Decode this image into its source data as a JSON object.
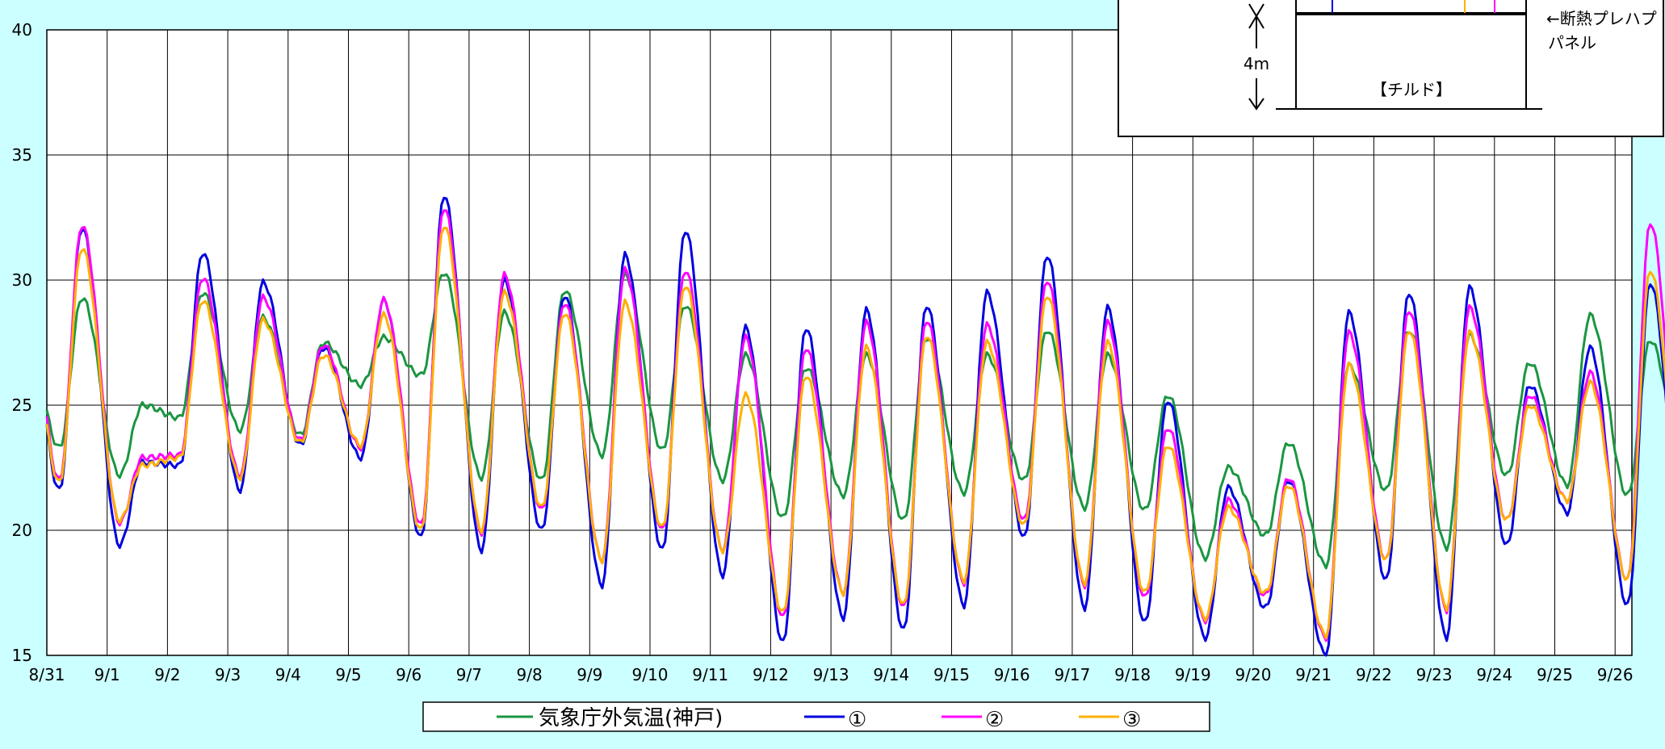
{
  "chart_data": {
    "type": "line",
    "xlabel": "",
    "ylabel": "",
    "ylim": [
      15,
      40
    ],
    "yticks": [
      15,
      20,
      25,
      30,
      35,
      40
    ],
    "grid": true,
    "legend_position": "bottom",
    "categories": [
      "8/31",
      "9/1",
      "9/2",
      "9/3",
      "9/4",
      "9/5",
      "9/6",
      "9/7",
      "9/8",
      "9/9",
      "9/10",
      "9/11",
      "9/12",
      "9/13",
      "9/14",
      "9/15",
      "9/16",
      "9/17",
      "9/18",
      "9/19",
      "9/20",
      "9/21",
      "9/22",
      "9/23",
      "9/24",
      "9/25",
      "9/26"
    ],
    "series_style": {
      "samples_per_day": 24,
      "start_day_offset": 0
    },
    "series": [
      {
        "name": "気象庁外気温(神戸)",
        "color": "#1a9641",
        "daily": [
          {
            "min": 23.3,
            "max": 29.3
          },
          {
            "min": 22.2,
            "max": 25.0
          },
          {
            "min": 24.5,
            "max": 29.5
          },
          {
            "min": 24.0,
            "max": 28.5
          },
          {
            "min": 23.8,
            "max": 27.5
          },
          {
            "min": 25.8,
            "max": 27.7
          },
          {
            "min": 26.2,
            "max": 30.3
          },
          {
            "min": 22.1,
            "max": 28.7
          },
          {
            "min": 22.0,
            "max": 29.6
          },
          {
            "min": 23.0,
            "max": 30.2
          },
          {
            "min": 23.2,
            "max": 29.0
          },
          {
            "min": 22.0,
            "max": 27.0
          },
          {
            "min": 20.5,
            "max": 26.5
          },
          {
            "min": 21.4,
            "max": 27.0
          },
          {
            "min": 20.4,
            "max": 27.7
          },
          {
            "min": 21.5,
            "max": 27.0
          },
          {
            "min": 22.0,
            "max": 28.0
          },
          {
            "min": 20.9,
            "max": 27.0
          },
          {
            "min": 20.8,
            "max": 25.4
          },
          {
            "min": 18.9,
            "max": 22.5
          },
          {
            "min": 19.8,
            "max": 23.5
          },
          {
            "min": 18.6,
            "max": 26.6
          },
          {
            "min": 21.6,
            "max": 28.0
          },
          {
            "min": 19.3,
            "max": 27.8
          },
          {
            "min": 22.2,
            "max": 26.7
          },
          {
            "min": 21.8,
            "max": 28.6
          },
          {
            "min": 21.4,
            "max": 27.6
          }
        ]
      },
      {
        "name": "①",
        "color": "#0000e0",
        "daily": [
          {
            "min": 21.6,
            "max": 32.1
          },
          {
            "min": 19.4,
            "max": 22.7
          },
          {
            "min": 22.6,
            "max": 31.1
          },
          {
            "min": 21.6,
            "max": 29.9
          },
          {
            "min": 23.4,
            "max": 27.3
          },
          {
            "min": 22.9,
            "max": 29.2
          },
          {
            "min": 19.7,
            "max": 33.4
          },
          {
            "min": 19.2,
            "max": 30.0
          },
          {
            "min": 20.0,
            "max": 29.4
          },
          {
            "min": 17.8,
            "max": 31.0
          },
          {
            "min": 19.2,
            "max": 32.0
          },
          {
            "min": 18.2,
            "max": 28.1
          },
          {
            "min": 15.5,
            "max": 28.1
          },
          {
            "min": 16.5,
            "max": 28.8
          },
          {
            "min": 16.0,
            "max": 29.0
          },
          {
            "min": 17.0,
            "max": 29.5
          },
          {
            "min": 19.7,
            "max": 31.0
          },
          {
            "min": 16.9,
            "max": 28.9
          },
          {
            "min": 16.3,
            "max": 25.2
          },
          {
            "min": 15.7,
            "max": 21.7
          },
          {
            "min": 16.9,
            "max": 22.0
          },
          {
            "min": 15.0,
            "max": 28.7
          },
          {
            "min": 18.0,
            "max": 29.5
          },
          {
            "min": 15.7,
            "max": 29.7
          },
          {
            "min": 19.4,
            "max": 25.8
          },
          {
            "min": 20.7,
            "max": 27.3
          },
          {
            "min": 17.0,
            "max": 29.9
          }
        ]
      },
      {
        "name": "②",
        "color": "#ff00ff",
        "daily": [
          {
            "min": 22.0,
            "max": 32.2
          },
          {
            "min": 20.3,
            "max": 22.9
          },
          {
            "min": 23.0,
            "max": 30.1
          },
          {
            "min": 22.2,
            "max": 29.3
          },
          {
            "min": 23.6,
            "max": 27.4
          },
          {
            "min": 23.3,
            "max": 29.2
          },
          {
            "min": 20.2,
            "max": 32.9
          },
          {
            "min": 19.9,
            "max": 30.2
          },
          {
            "min": 20.8,
            "max": 29.1
          },
          {
            "min": 18.8,
            "max": 30.4
          },
          {
            "min": 20.0,
            "max": 30.4
          },
          {
            "min": 19.2,
            "max": 27.7
          },
          {
            "min": 16.5,
            "max": 27.3
          },
          {
            "min": 17.5,
            "max": 28.3
          },
          {
            "min": 16.9,
            "max": 28.4
          },
          {
            "min": 17.9,
            "max": 28.2
          },
          {
            "min": 20.4,
            "max": 30.0
          },
          {
            "min": 17.8,
            "max": 28.3
          },
          {
            "min": 17.3,
            "max": 24.1
          },
          {
            "min": 16.4,
            "max": 21.2
          },
          {
            "min": 17.4,
            "max": 22.1
          },
          {
            "min": 15.7,
            "max": 27.9
          },
          {
            "min": 18.8,
            "max": 28.8
          },
          {
            "min": 16.8,
            "max": 28.9
          },
          {
            "min": 20.4,
            "max": 25.4
          },
          {
            "min": 21.2,
            "max": 26.3
          },
          {
            "min": 18.0,
            "max": 32.3
          }
        ]
      },
      {
        "name": "③",
        "color": "#ffb000",
        "daily": [
          {
            "min": 21.9,
            "max": 31.3
          },
          {
            "min": 20.4,
            "max": 22.6
          },
          {
            "min": 22.9,
            "max": 29.2
          },
          {
            "min": 22.1,
            "max": 28.4
          },
          {
            "min": 23.5,
            "max": 27.0
          },
          {
            "min": 23.4,
            "max": 28.6
          },
          {
            "min": 20.0,
            "max": 32.2
          },
          {
            "min": 20.0,
            "max": 29.5
          },
          {
            "min": 20.9,
            "max": 28.7
          },
          {
            "min": 18.8,
            "max": 29.1
          },
          {
            "min": 20.1,
            "max": 29.8
          },
          {
            "min": 19.2,
            "max": 25.4
          },
          {
            "min": 16.7,
            "max": 26.2
          },
          {
            "min": 17.5,
            "max": 27.3
          },
          {
            "min": 17.0,
            "max": 27.8
          },
          {
            "min": 18.0,
            "max": 27.5
          },
          {
            "min": 20.2,
            "max": 29.4
          },
          {
            "min": 17.9,
            "max": 27.5
          },
          {
            "min": 17.5,
            "max": 23.4
          },
          {
            "min": 16.5,
            "max": 20.9
          },
          {
            "min": 17.5,
            "max": 21.8
          },
          {
            "min": 15.8,
            "max": 26.6
          },
          {
            "min": 18.8,
            "max": 28.0
          },
          {
            "min": 16.9,
            "max": 27.9
          },
          {
            "min": 20.4,
            "max": 25.0
          },
          {
            "min": 21.2,
            "max": 25.9
          },
          {
            "min": 18.0,
            "max": 30.4
          }
        ]
      }
    ]
  },
  "inset": {
    "height_label": "4m",
    "panel_label": "←断熱プレハプ",
    "panel_label2": "パネル",
    "room_label": "【チルド】"
  }
}
